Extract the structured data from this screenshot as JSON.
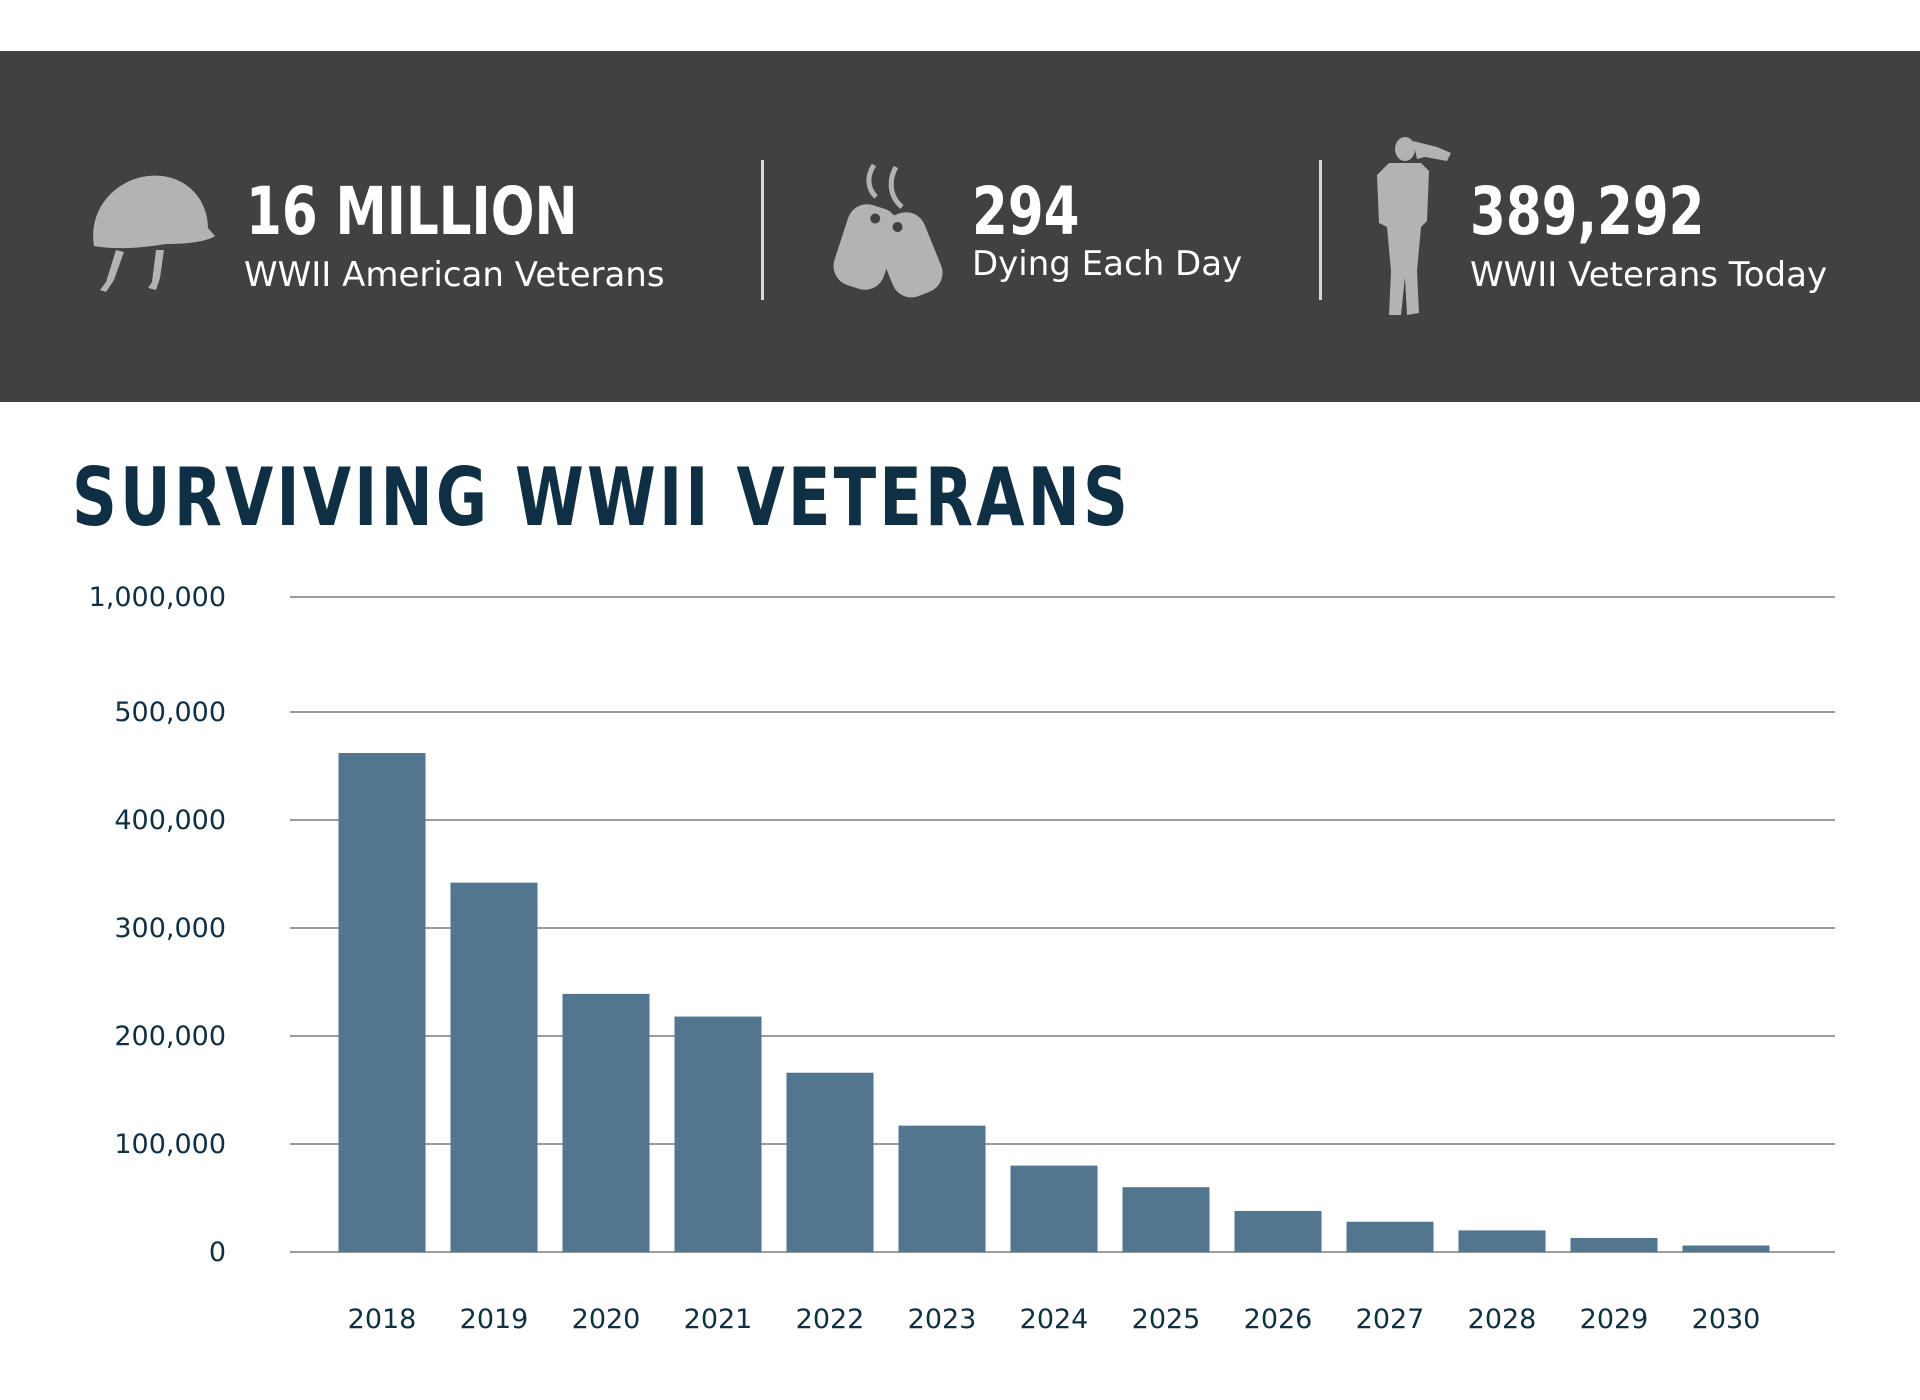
{
  "stats": [
    {
      "value": "16 MILLION",
      "label": "WWII American Veterans",
      "icon": "helmet-icon"
    },
    {
      "value": "294",
      "label": "Dying Each Day",
      "icon": "dog-tags-icon"
    },
    {
      "value": "389,292",
      "label": "WWII Veterans Today",
      "icon": "saluting-soldier-icon"
    }
  ],
  "colors": {
    "band": "#414143",
    "icon": "#b3b3b5",
    "bar": "#527690",
    "title": "#0f2f45",
    "grid": "#9a9a9a"
  },
  "chart_data": {
    "type": "bar",
    "title": "SURVIVING WWII VETERANS",
    "xlabel": "",
    "ylabel": "",
    "categories": [
      "2018",
      "2019",
      "2020",
      "2021",
      "2022",
      "2023",
      "2024",
      "2025",
      "2026",
      "2027",
      "2028",
      "2029",
      "2030"
    ],
    "values": [
      462000,
      342000,
      239000,
      218000,
      166000,
      117000,
      80000,
      60000,
      38000,
      28000,
      20000,
      13000,
      6000
    ],
    "yticks": [
      {
        "value": 0,
        "label": "0"
      },
      {
        "value": 100000,
        "label": "100,000"
      },
      {
        "value": 200000,
        "label": "200,000"
      },
      {
        "value": 300000,
        "label": "300,000"
      },
      {
        "value": 400000,
        "label": "400,000"
      },
      {
        "value": 500000,
        "label": "500,000"
      },
      {
        "value": 1000000,
        "label": "1,000,000"
      }
    ],
    "axis_note": "broken y-axis: gap between 500,000 and 1,000,000",
    "grid": true,
    "legend": "none"
  }
}
